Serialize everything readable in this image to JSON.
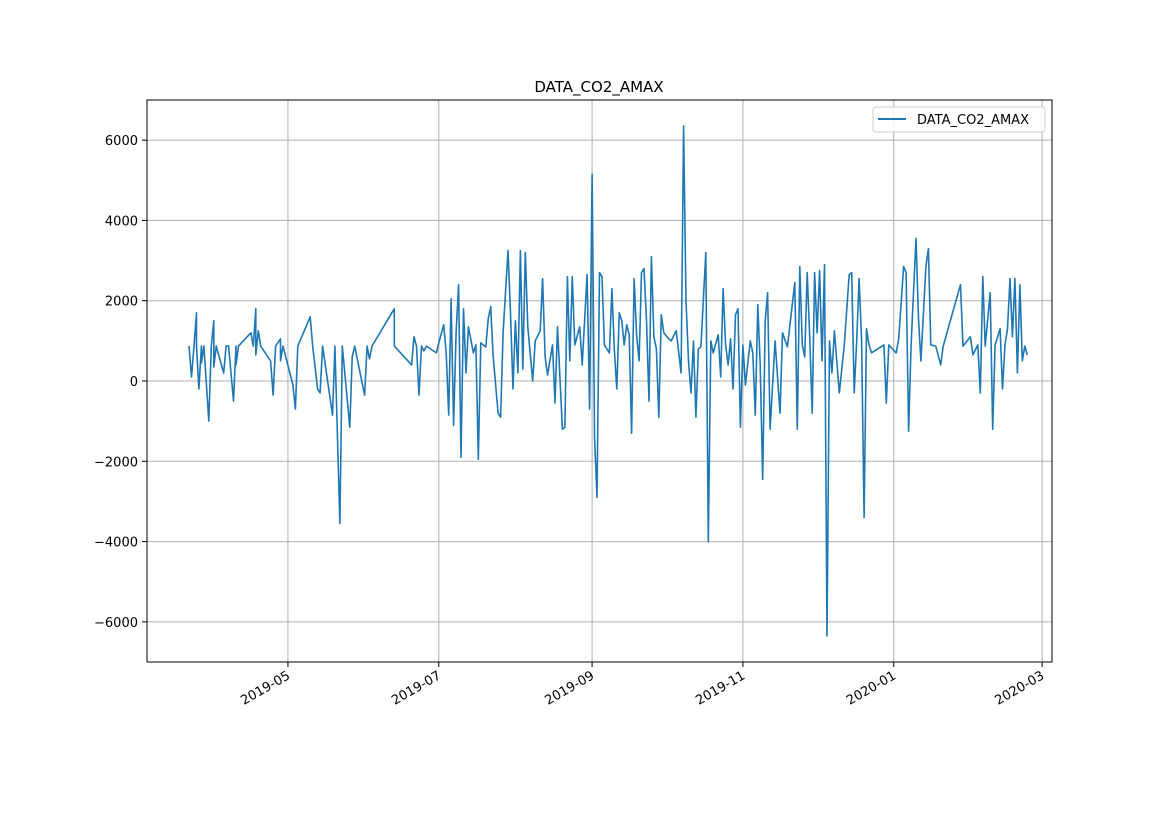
{
  "chart_data": {
    "type": "line",
    "title": "DATA_CO2_AMAX",
    "xlabel": "",
    "ylabel": "",
    "grid": true,
    "legend": {
      "placement": "upper right",
      "entries": [
        "DATA_CO2_AMAX"
      ]
    },
    "colors": {
      "series": "#1f77b4",
      "grid": "#b0b0b0",
      "axes": "#000000"
    },
    "xlim": [
      "2019-03-05",
      "2020-03-05"
    ],
    "ylim": [
      -7000,
      7000
    ],
    "x_ticks": [
      "2019-05",
      "2019-07",
      "2019-09",
      "2019-11",
      "2020-01",
      "2020-03"
    ],
    "y_ticks": [
      6000,
      4000,
      2000,
      0,
      -2000,
      -4000,
      -6000
    ],
    "series": [
      {
        "name": "DATA_CO2_AMAX",
        "points": [
          [
            "2019-03-22",
            870
          ],
          [
            "2019-03-23",
            100
          ],
          [
            "2019-03-24",
            870
          ],
          [
            "2019-03-25",
            1700
          ],
          [
            "2019-03-25",
            870
          ],
          [
            "2019-03-26",
            -200
          ],
          [
            "2019-03-27",
            870
          ],
          [
            "2019-03-27",
            450
          ],
          [
            "2019-03-28",
            870
          ],
          [
            "2019-03-30",
            -1000
          ],
          [
            "2019-03-31",
            870
          ],
          [
            "2019-04-01",
            1500
          ],
          [
            "2019-04-01",
            350
          ],
          [
            "2019-04-02",
            870
          ],
          [
            "2019-04-05",
            200
          ],
          [
            "2019-04-06",
            870
          ],
          [
            "2019-04-07",
            870
          ],
          [
            "2019-04-09",
            -500
          ],
          [
            "2019-04-10",
            870
          ],
          [
            "2019-04-10",
            400
          ],
          [
            "2019-04-11",
            870
          ],
          [
            "2019-04-16",
            1200
          ],
          [
            "2019-04-17",
            870
          ],
          [
            "2019-04-18",
            1800
          ],
          [
            "2019-04-18",
            650
          ],
          [
            "2019-04-19",
            1250
          ],
          [
            "2019-04-20",
            870
          ],
          [
            "2019-04-24",
            500
          ],
          [
            "2019-04-25",
            -350
          ],
          [
            "2019-04-26",
            870
          ],
          [
            "2019-04-28",
            1050
          ],
          [
            "2019-04-28",
            500
          ],
          [
            "2019-04-29",
            870
          ],
          [
            "2019-05-03",
            -100
          ],
          [
            "2019-05-04",
            -700
          ],
          [
            "2019-05-05",
            870
          ],
          [
            "2019-05-10",
            1600
          ],
          [
            "2019-05-11",
            870
          ],
          [
            "2019-05-13",
            -200
          ],
          [
            "2019-05-14",
            -300
          ],
          [
            "2019-05-15",
            870
          ],
          [
            "2019-05-19",
            -850
          ],
          [
            "2019-05-20",
            870
          ],
          [
            "2019-05-22",
            -3550
          ],
          [
            "2019-05-23",
            870
          ],
          [
            "2019-05-26",
            -1150
          ],
          [
            "2019-05-27",
            600
          ],
          [
            "2019-05-28",
            870
          ],
          [
            "2019-06-01",
            -350
          ],
          [
            "2019-06-02",
            870
          ],
          [
            "2019-06-03",
            550
          ],
          [
            "2019-06-04",
            870
          ],
          [
            "2019-06-13",
            1800
          ],
          [
            "2019-06-13",
            870
          ],
          [
            "2019-06-20",
            400
          ],
          [
            "2019-06-21",
            1100
          ],
          [
            "2019-06-22",
            870
          ],
          [
            "2019-06-23",
            -350
          ],
          [
            "2019-06-24",
            870
          ],
          [
            "2019-06-25",
            750
          ],
          [
            "2019-06-26",
            870
          ],
          [
            "2019-06-30",
            700
          ],
          [
            "2019-07-01",
            950
          ],
          [
            "2019-07-03",
            1400
          ],
          [
            "2019-07-04",
            700
          ],
          [
            "2019-07-05",
            -850
          ],
          [
            "2019-07-06",
            2050
          ],
          [
            "2019-07-07",
            -1100
          ],
          [
            "2019-07-08",
            1200
          ],
          [
            "2019-07-09",
            2400
          ],
          [
            "2019-07-10",
            -1900
          ],
          [
            "2019-07-11",
            1800
          ],
          [
            "2019-07-12",
            200
          ],
          [
            "2019-07-13",
            1350
          ],
          [
            "2019-07-15",
            700
          ],
          [
            "2019-07-16",
            900
          ],
          [
            "2019-07-17",
            -1950
          ],
          [
            "2019-07-18",
            950
          ],
          [
            "2019-07-20",
            850
          ],
          [
            "2019-07-21",
            1550
          ],
          [
            "2019-07-22",
            1850
          ],
          [
            "2019-07-23",
            600
          ],
          [
            "2019-07-25",
            -800
          ],
          [
            "2019-07-26",
            -900
          ],
          [
            "2019-07-27",
            1200
          ],
          [
            "2019-07-29",
            3250
          ],
          [
            "2019-07-30",
            1700
          ],
          [
            "2019-07-31",
            -200
          ],
          [
            "2019-08-01",
            1500
          ],
          [
            "2019-08-02",
            200
          ],
          [
            "2019-08-03",
            3250
          ],
          [
            "2019-08-04",
            300
          ],
          [
            "2019-08-05",
            3200
          ],
          [
            "2019-08-06",
            1350
          ],
          [
            "2019-08-08",
            0
          ],
          [
            "2019-08-09",
            1000
          ],
          [
            "2019-08-11",
            1250
          ],
          [
            "2019-08-12",
            2550
          ],
          [
            "2019-08-13",
            600
          ],
          [
            "2019-08-14",
            150
          ],
          [
            "2019-08-16",
            900
          ],
          [
            "2019-08-17",
            -550
          ],
          [
            "2019-08-18",
            1350
          ],
          [
            "2019-08-20",
            -1200
          ],
          [
            "2019-08-21",
            -1150
          ],
          [
            "2019-08-22",
            2600
          ],
          [
            "2019-08-23",
            500
          ],
          [
            "2019-08-24",
            2600
          ],
          [
            "2019-08-25",
            900
          ],
          [
            "2019-08-27",
            1350
          ],
          [
            "2019-08-28",
            400
          ],
          [
            "2019-08-30",
            2650
          ],
          [
            "2019-08-31",
            -700
          ],
          [
            "2019-09-01",
            5150
          ],
          [
            "2019-09-02",
            -1450
          ],
          [
            "2019-09-03",
            -2900
          ],
          [
            "2019-09-04",
            2700
          ],
          [
            "2019-09-05",
            2600
          ],
          [
            "2019-09-06",
            900
          ],
          [
            "2019-09-08",
            700
          ],
          [
            "2019-09-09",
            2300
          ],
          [
            "2019-09-10",
            800
          ],
          [
            "2019-09-11",
            -200
          ],
          [
            "2019-09-12",
            1700
          ],
          [
            "2019-09-13",
            1500
          ],
          [
            "2019-09-14",
            900
          ],
          [
            "2019-09-15",
            1400
          ],
          [
            "2019-09-16",
            1150
          ],
          [
            "2019-09-17",
            -1300
          ],
          [
            "2019-09-18",
            2550
          ],
          [
            "2019-09-19",
            1150
          ],
          [
            "2019-09-20",
            500
          ],
          [
            "2019-09-21",
            2700
          ],
          [
            "2019-09-22",
            2800
          ],
          [
            "2019-09-23",
            1500
          ],
          [
            "2019-09-24",
            -500
          ],
          [
            "2019-09-25",
            3100
          ],
          [
            "2019-09-26",
            1100
          ],
          [
            "2019-09-27",
            800
          ],
          [
            "2019-09-28",
            -900
          ],
          [
            "2019-09-29",
            1650
          ],
          [
            "2019-09-30",
            1200
          ],
          [
            "2019-10-02",
            1050
          ],
          [
            "2019-10-03",
            1000
          ],
          [
            "2019-10-05",
            1250
          ],
          [
            "2019-10-07",
            200
          ],
          [
            "2019-10-08",
            6350
          ],
          [
            "2019-10-09",
            2000
          ],
          [
            "2019-10-10",
            500
          ],
          [
            "2019-10-11",
            -300
          ],
          [
            "2019-10-12",
            1000
          ],
          [
            "2019-10-13",
            -900
          ],
          [
            "2019-10-14",
            800
          ],
          [
            "2019-10-15",
            850
          ],
          [
            "2019-10-17",
            3200
          ],
          [
            "2019-10-18",
            -4000
          ],
          [
            "2019-10-19",
            1000
          ],
          [
            "2019-10-20",
            700
          ],
          [
            "2019-10-22",
            1150
          ],
          [
            "2019-10-23",
            100
          ],
          [
            "2019-10-24",
            2300
          ],
          [
            "2019-10-25",
            900
          ],
          [
            "2019-10-26",
            400
          ],
          [
            "2019-10-27",
            1050
          ],
          [
            "2019-10-28",
            -200
          ],
          [
            "2019-10-29",
            1650
          ],
          [
            "2019-10-30",
            1800
          ],
          [
            "2019-10-31",
            -1150
          ],
          [
            "2019-11-01",
            900
          ],
          [
            "2019-11-02",
            -100
          ],
          [
            "2019-11-04",
            1000
          ],
          [
            "2019-11-05",
            700
          ],
          [
            "2019-11-06",
            -850
          ],
          [
            "2019-11-07",
            1900
          ],
          [
            "2019-11-08",
            400
          ],
          [
            "2019-11-09",
            -2450
          ],
          [
            "2019-11-10",
            1500
          ],
          [
            "2019-11-11",
            2200
          ],
          [
            "2019-11-12",
            -1200
          ],
          [
            "2019-11-14",
            1000
          ],
          [
            "2019-11-16",
            -800
          ],
          [
            "2019-11-17",
            1200
          ],
          [
            "2019-11-19",
            850
          ],
          [
            "2019-11-22",
            2450
          ],
          [
            "2019-11-23",
            -1200
          ],
          [
            "2019-11-24",
            2850
          ],
          [
            "2019-11-25",
            900
          ],
          [
            "2019-11-26",
            600
          ],
          [
            "2019-11-27",
            2700
          ],
          [
            "2019-11-28",
            1100
          ],
          [
            "2019-11-29",
            -800
          ],
          [
            "2019-11-30",
            2700
          ],
          [
            "2019-12-01",
            1200
          ],
          [
            "2019-12-02",
            2750
          ],
          [
            "2019-12-03",
            500
          ],
          [
            "2019-12-04",
            2900
          ],
          [
            "2019-12-05",
            -6350
          ],
          [
            "2019-12-06",
            1000
          ],
          [
            "2019-12-07",
            200
          ],
          [
            "2019-12-08",
            1250
          ],
          [
            "2019-12-10",
            -300
          ],
          [
            "2019-12-12",
            900
          ],
          [
            "2019-12-14",
            2650
          ],
          [
            "2019-12-15",
            2700
          ],
          [
            "2019-12-16",
            -300
          ],
          [
            "2019-12-17",
            1000
          ],
          [
            "2019-12-18",
            2550
          ],
          [
            "2019-12-19",
            1000
          ],
          [
            "2019-12-20",
            -3400
          ],
          [
            "2019-12-21",
            1300
          ],
          [
            "2019-12-22",
            900
          ],
          [
            "2019-12-23",
            700
          ],
          [
            "2019-12-28",
            900
          ],
          [
            "2019-12-29",
            -550
          ],
          [
            "2019-12-30",
            900
          ],
          [
            "2020-01-02",
            700
          ],
          [
            "2020-01-03",
            1050
          ],
          [
            "2020-01-05",
            2850
          ],
          [
            "2020-01-06",
            2700
          ],
          [
            "2020-01-07",
            -1250
          ],
          [
            "2020-01-08",
            900
          ],
          [
            "2020-01-10",
            3550
          ],
          [
            "2020-01-11",
            1550
          ],
          [
            "2020-01-12",
            500
          ],
          [
            "2020-01-14",
            2850
          ],
          [
            "2020-01-15",
            3300
          ],
          [
            "2020-01-16",
            900
          ],
          [
            "2020-01-18",
            870
          ],
          [
            "2020-01-20",
            400
          ],
          [
            "2020-01-21",
            870
          ],
          [
            "2020-01-28",
            2400
          ],
          [
            "2020-01-29",
            870
          ],
          [
            "2020-02-01",
            1100
          ],
          [
            "2020-02-02",
            650
          ],
          [
            "2020-02-04",
            900
          ],
          [
            "2020-02-05",
            -300
          ],
          [
            "2020-02-06",
            2600
          ],
          [
            "2020-02-07",
            870
          ],
          [
            "2020-02-09",
            2200
          ],
          [
            "2020-02-10",
            -1200
          ],
          [
            "2020-02-11",
            900
          ],
          [
            "2020-02-13",
            1300
          ],
          [
            "2020-02-14",
            -200
          ],
          [
            "2020-02-15",
            900
          ],
          [
            "2020-02-16",
            1300
          ],
          [
            "2020-02-17",
            2550
          ],
          [
            "2020-02-18",
            1100
          ],
          [
            "2020-02-19",
            2550
          ],
          [
            "2020-02-20",
            200
          ],
          [
            "2020-02-21",
            2400
          ],
          [
            "2020-02-22",
            500
          ],
          [
            "2020-02-23",
            870
          ],
          [
            "2020-02-24",
            650
          ]
        ]
      }
    ]
  }
}
